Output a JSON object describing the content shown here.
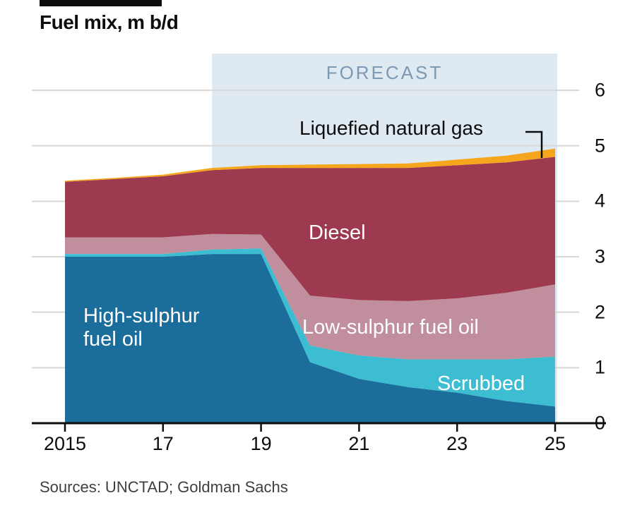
{
  "sources": "Sources: UNCTAD; Goldman Sachs",
  "colors": {
    "forecast_band": "#dfe9f2",
    "forecast_text": "#7e99b4",
    "gridline": "#d8d8d8",
    "axis": "#0d0d0d",
    "background": "#ffffff"
  },
  "area_labels": {
    "high_sulphur_line1": "High-sulphur",
    "high_sulphur_line2": "fuel oil"
  },
  "chart_data": {
    "type": "area",
    "title": "Fuel mix, m b/d",
    "subtitle": "",
    "forecast_label": "FORECAST",
    "forecast_start": 2018,
    "x": [
      2015,
      2016,
      2017,
      2018,
      2019,
      2020,
      2021,
      2022,
      2023,
      2024,
      2025
    ],
    "x_range": [
      2015,
      2025
    ],
    "ylim": [
      0,
      6
    ],
    "y_ticks": [
      "6",
      "5",
      "4",
      "3",
      "2",
      "1",
      "0"
    ],
    "x_ticks": [
      "2015",
      "17",
      "19",
      "21",
      "23",
      "25"
    ],
    "x_tick_years": [
      2015,
      2017,
      2019,
      2021,
      2023,
      2025
    ],
    "grid": "horizontal",
    "legend_position": "labels-inside",
    "stacked": true,
    "series": [
      {
        "name": "High-sulphur fuel oil",
        "color": "#1b6d9b",
        "values": [
          3.0,
          3.0,
          3.0,
          3.05,
          3.05,
          1.1,
          0.8,
          0.65,
          0.55,
          0.4,
          0.3
        ]
      },
      {
        "name": "Scrubbed",
        "color": "#3cbdd1",
        "values": [
          0.05,
          0.05,
          0.05,
          0.08,
          0.1,
          0.3,
          0.42,
          0.5,
          0.6,
          0.75,
          0.9
        ]
      },
      {
        "name": "Low-sulphur fuel oil",
        "color": "#c08e9d",
        "values": [
          0.3,
          0.3,
          0.3,
          0.28,
          0.25,
          0.9,
          1.0,
          1.05,
          1.1,
          1.2,
          1.3
        ]
      },
      {
        "name": "Diesel",
        "color": "#9d3a50",
        "values": [
          1.0,
          1.05,
          1.1,
          1.15,
          1.2,
          2.3,
          2.38,
          2.4,
          2.4,
          2.35,
          2.3
        ]
      },
      {
        "name": "Liquefied natural gas",
        "color": "#f5a61d",
        "values": [
          0.02,
          0.02,
          0.03,
          0.04,
          0.05,
          0.06,
          0.07,
          0.08,
          0.1,
          0.12,
          0.15
        ]
      }
    ]
  }
}
